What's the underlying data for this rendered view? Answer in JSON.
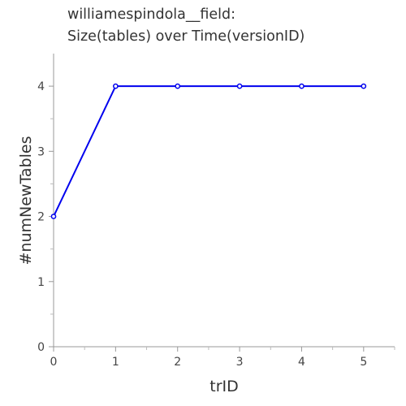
{
  "chart_data": {
    "type": "line",
    "title_lines": [
      "williamespindola__field:",
      "Size(tables) over Time(versionID)"
    ],
    "xlabel": "trID",
    "ylabel": "#numNewTables",
    "xlim": [
      0,
      5.5
    ],
    "ylim": [
      0,
      4.5
    ],
    "x_ticks": [
      0,
      1,
      2,
      3,
      4,
      5
    ],
    "y_ticks": [
      0,
      1,
      2,
      3,
      4
    ],
    "grid": false,
    "series": [
      {
        "x": [
          0,
          1,
          2,
          3,
          4,
          5
        ],
        "values": [
          2,
          4,
          4,
          4,
          4,
          4
        ],
        "color": "#0000ee",
        "markers": true
      }
    ]
  }
}
